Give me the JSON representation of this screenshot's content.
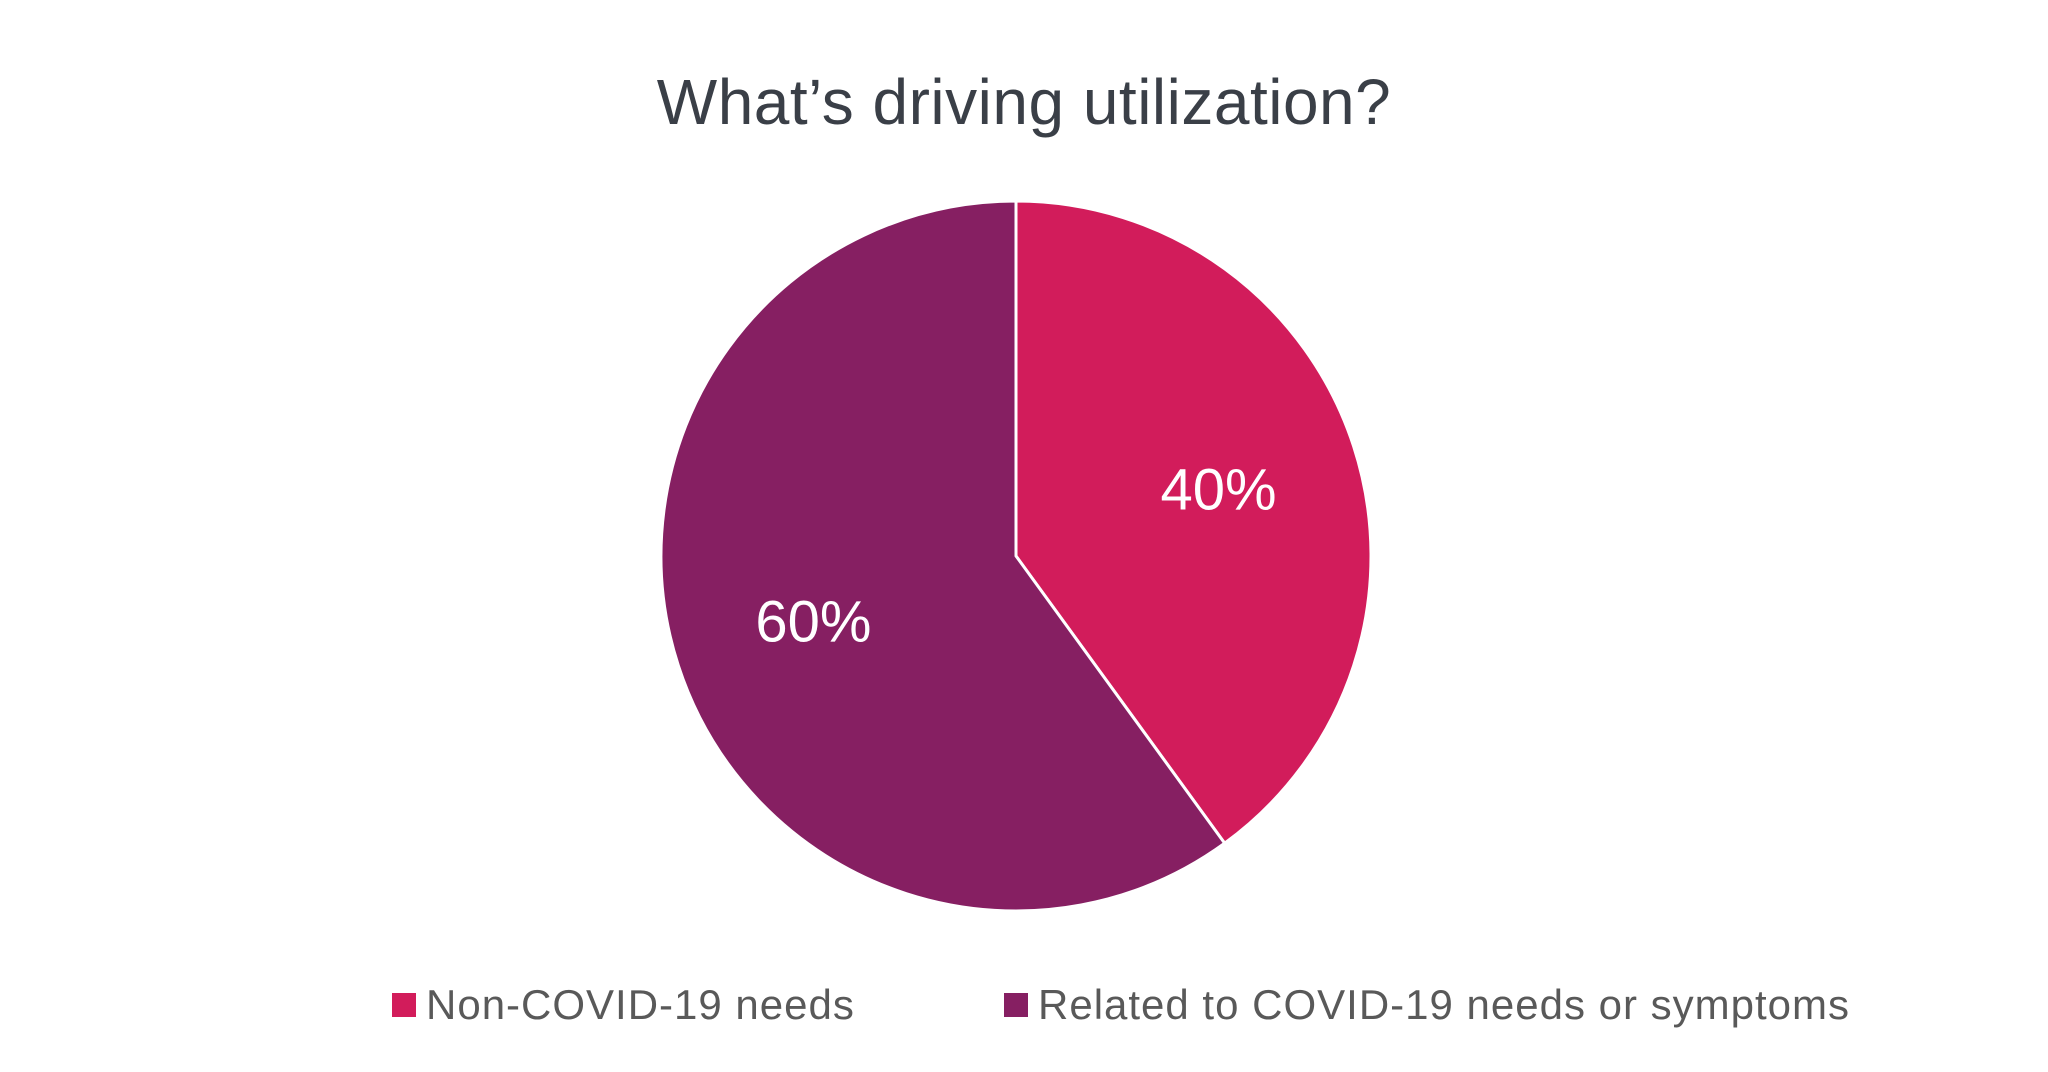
{
  "chart_data": {
    "type": "pie",
    "title": "What’s driving utilization?",
    "categories": [
      "Non-COVID-19 needs",
      "Related to COVID-19 needs or symptoms"
    ],
    "values": [
      40,
      60
    ],
    "data_labels": [
      "40%",
      "60%"
    ],
    "colors": [
      "#d21c5b",
      "#861f62"
    ],
    "start_angle_deg": 0,
    "direction": "clockwise",
    "legend_position": "bottom"
  }
}
